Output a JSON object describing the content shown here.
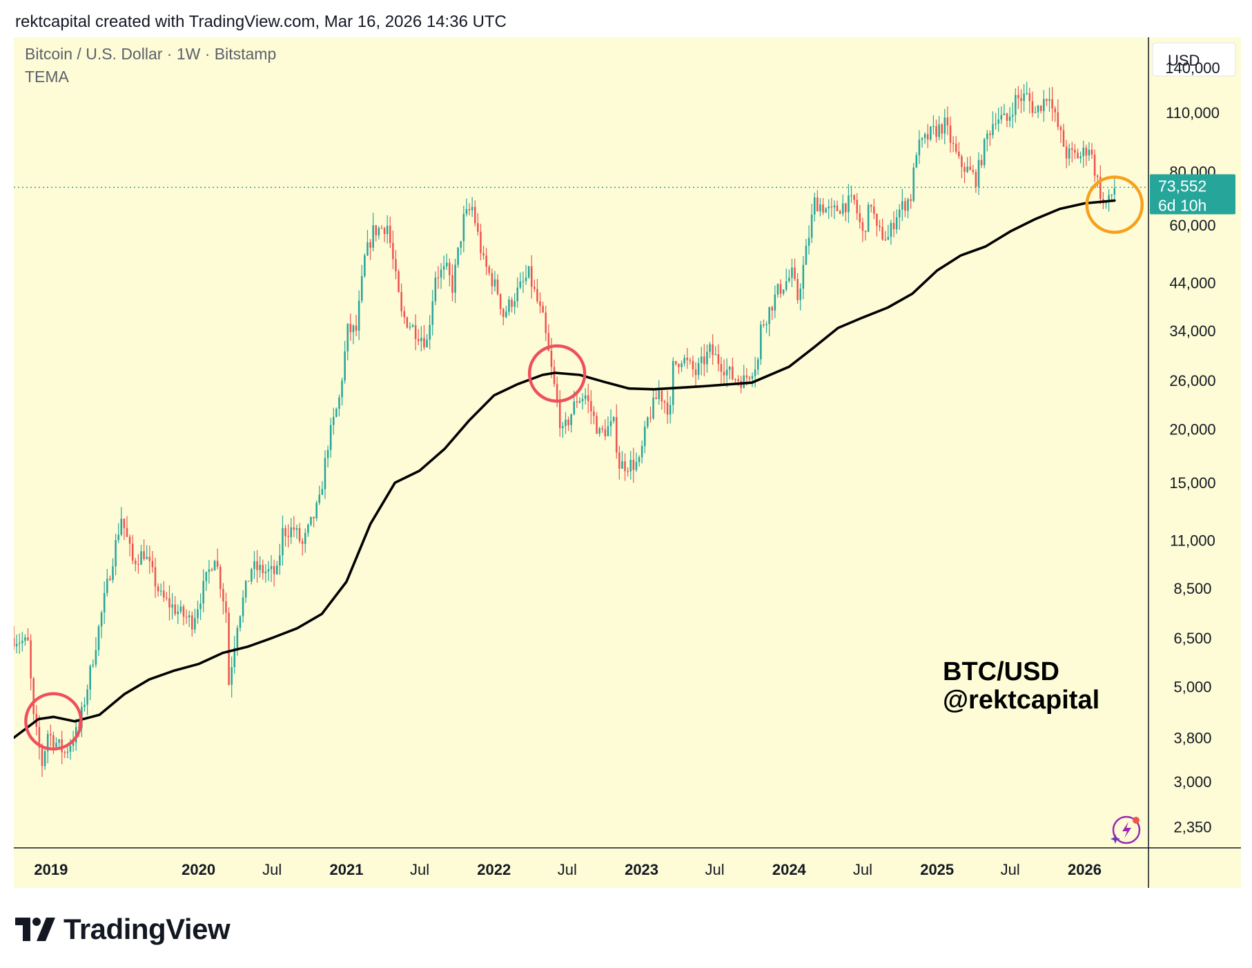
{
  "header": {
    "text": "rektcapital created with TradingView.com, Mar 16, 2026 14:36 UTC"
  },
  "legend": {
    "symbol": "Bitcoin / U.S. Dollar · 1W · Bitstamp",
    "indicator": "TEMA"
  },
  "watermark": {
    "line1": "BTC/USD",
    "line2": "@rektcapital"
  },
  "price_scale": {
    "currency": "USD",
    "last_price": "73,552",
    "countdown": "6d 10h"
  },
  "footer": {
    "brand": "TradingView"
  },
  "colors": {
    "background": "#fdfcd6",
    "up": "#26a69a",
    "down": "#ef5350",
    "tema": "#000000",
    "circle_red": "#ef4f5b",
    "circle_orange": "#f7a01b",
    "price_label": "#26a69a"
  },
  "chart_data": {
    "type": "candlestick",
    "y_scale": "log",
    "ylim": [
      2100,
      165000
    ],
    "xlim": [
      "2018-10-01",
      "2026-06-08"
    ],
    "y_ticks": [
      "140,000",
      "110,000",
      "80,000",
      "60,000",
      "44,000",
      "34,000",
      "26,000",
      "20,000",
      "15,000",
      "11,000",
      "8,500",
      "6,500",
      "5,000",
      "3,800",
      "3,000",
      "2,350"
    ],
    "y_tick_values": [
      140000,
      110000,
      80000,
      60000,
      44000,
      34000,
      26000,
      20000,
      15000,
      11000,
      8500,
      6500,
      5000,
      3800,
      3000,
      2350
    ],
    "x_ticks": [
      {
        "label": "2019",
        "date": "2019-01-01",
        "bold": true
      },
      {
        "label": "2020",
        "date": "2020-01-01",
        "bold": true
      },
      {
        "label": "Jul",
        "date": "2020-07-01",
        "bold": false
      },
      {
        "label": "2021",
        "date": "2021-01-01",
        "bold": true
      },
      {
        "label": "Jul",
        "date": "2021-07-01",
        "bold": false
      },
      {
        "label": "2022",
        "date": "2022-01-01",
        "bold": true
      },
      {
        "label": "Jul",
        "date": "2022-07-01",
        "bold": false
      },
      {
        "label": "2023",
        "date": "2023-01-01",
        "bold": true
      },
      {
        "label": "Jul",
        "date": "2023-07-01",
        "bold": false
      },
      {
        "label": "2024",
        "date": "2024-01-01",
        "bold": true
      },
      {
        "label": "Jul",
        "date": "2024-07-01",
        "bold": false
      },
      {
        "label": "2025",
        "date": "2025-01-01",
        "bold": true
      },
      {
        "label": "Jul",
        "date": "2025-07-01",
        "bold": false
      },
      {
        "label": "2026",
        "date": "2026-01-01",
        "bold": true
      }
    ],
    "series": [
      {
        "name": "Bitcoin / U.S. Dollar",
        "kind": "price",
        "points": [
          [
            "2018-10-01",
            6500
          ],
          [
            "2018-11-05",
            6300
          ],
          [
            "2018-11-19",
            4200
          ],
          [
            "2018-12-10",
            3300
          ],
          [
            "2018-12-24",
            3900
          ],
          [
            "2019-02-04",
            3500
          ],
          [
            "2019-03-11",
            4000
          ],
          [
            "2019-04-01",
            5000
          ],
          [
            "2019-05-13",
            8000
          ],
          [
            "2019-06-24",
            12500
          ],
          [
            "2019-07-22",
            9800
          ],
          [
            "2019-08-19",
            10300
          ],
          [
            "2019-09-30",
            8100
          ],
          [
            "2019-11-18",
            7400
          ],
          [
            "2019-12-16",
            7100
          ],
          [
            "2020-02-10",
            10200
          ],
          [
            "2020-03-09",
            7500
          ],
          [
            "2020-03-16",
            5100
          ],
          [
            "2020-04-06",
            7100
          ],
          [
            "2020-05-11",
            9500
          ],
          [
            "2020-06-15",
            9300
          ],
          [
            "2020-07-13",
            9200
          ],
          [
            "2020-07-27",
            11500
          ],
          [
            "2020-08-24",
            11700
          ],
          [
            "2020-09-14",
            10700
          ],
          [
            "2020-10-26",
            13500
          ],
          [
            "2020-11-16",
            18500
          ],
          [
            "2020-12-14",
            23500
          ],
          [
            "2021-01-04",
            34000
          ],
          [
            "2021-01-25",
            34000
          ],
          [
            "2021-02-15",
            50000
          ],
          [
            "2021-03-08",
            58000
          ],
          [
            "2021-04-12",
            60000
          ],
          [
            "2021-05-17",
            37000
          ],
          [
            "2021-06-21",
            34000
          ],
          [
            "2021-07-19",
            32000
          ],
          [
            "2021-08-09",
            46000
          ],
          [
            "2021-09-06",
            47000
          ],
          [
            "2021-09-20",
            43000
          ],
          [
            "2021-10-18",
            62000
          ],
          [
            "2021-11-08",
            66000
          ],
          [
            "2021-12-06",
            49000
          ],
          [
            "2022-01-10",
            42000
          ],
          [
            "2022-01-24",
            37000
          ],
          [
            "2022-02-14",
            40000
          ],
          [
            "2022-03-28",
            46000
          ],
          [
            "2022-05-02",
            36000
          ],
          [
            "2022-05-16",
            30000
          ],
          [
            "2022-06-13",
            21000
          ],
          [
            "2022-06-20",
            19500
          ],
          [
            "2022-07-25",
            23500
          ],
          [
            "2022-08-15",
            24000
          ],
          [
            "2022-09-19",
            19500
          ],
          [
            "2022-10-24",
            20500
          ],
          [
            "2022-11-07",
            16500
          ],
          [
            "2022-12-26",
            16600
          ],
          [
            "2023-01-16",
            21000
          ],
          [
            "2023-02-13",
            24500
          ],
          [
            "2023-03-13",
            22000
          ],
          [
            "2023-03-20",
            28000
          ],
          [
            "2023-04-10",
            29500
          ],
          [
            "2023-05-15",
            27000
          ],
          [
            "2023-06-19",
            30500
          ],
          [
            "2023-08-14",
            26500
          ],
          [
            "2023-09-11",
            26000
          ],
          [
            "2023-10-16",
            29000
          ],
          [
            "2023-10-23",
            34500
          ],
          [
            "2023-12-04",
            42000
          ],
          [
            "2024-01-08",
            46000
          ],
          [
            "2024-01-22",
            40500
          ],
          [
            "2024-02-12",
            52000
          ],
          [
            "2024-03-04",
            68000
          ],
          [
            "2024-03-18",
            67000
          ],
          [
            "2024-04-15",
            64000
          ],
          [
            "2024-05-13",
            67000
          ],
          [
            "2024-06-10",
            68000
          ],
          [
            "2024-07-01",
            57000
          ],
          [
            "2024-07-22",
            68000
          ],
          [
            "2024-08-05",
            58000
          ],
          [
            "2024-09-02",
            56000
          ],
          [
            "2024-09-23",
            64000
          ],
          [
            "2024-10-28",
            70000
          ],
          [
            "2024-11-11",
            90000
          ],
          [
            "2024-12-16",
            98000
          ],
          [
            "2025-01-20",
            103000
          ],
          [
            "2025-02-24",
            84000
          ],
          [
            "2025-03-10",
            82000
          ],
          [
            "2025-04-07",
            77000
          ],
          [
            "2025-05-05",
            97000
          ],
          [
            "2025-05-26",
            108000
          ],
          [
            "2025-06-23",
            105000
          ],
          [
            "2025-07-14",
            118000
          ],
          [
            "2025-08-11",
            120000
          ],
          [
            "2025-09-01",
            110000
          ],
          [
            "2025-10-06",
            123000
          ],
          [
            "2025-10-13",
            112000
          ],
          [
            "2025-11-17",
            88000
          ],
          [
            "2025-12-22",
            87000
          ],
          [
            "2026-01-12",
            92000
          ],
          [
            "2026-02-02",
            76000
          ],
          [
            "2026-02-16",
            67000
          ],
          [
            "2026-03-02",
            68000
          ],
          [
            "2026-03-16",
            73552
          ]
        ]
      },
      {
        "name": "TEMA",
        "kind": "indicator",
        "points": [
          [
            "2018-10-01",
            3800
          ],
          [
            "2018-12-01",
            4200
          ],
          [
            "2019-01-07",
            4250
          ],
          [
            "2019-03-01",
            4150
          ],
          [
            "2019-05-01",
            4300
          ],
          [
            "2019-07-01",
            4800
          ],
          [
            "2019-09-01",
            5200
          ],
          [
            "2019-11-01",
            5450
          ],
          [
            "2020-01-01",
            5650
          ],
          [
            "2020-03-01",
            6000
          ],
          [
            "2020-05-01",
            6200
          ],
          [
            "2020-07-01",
            6500
          ],
          [
            "2020-09-01",
            6850
          ],
          [
            "2020-11-01",
            7400
          ],
          [
            "2021-01-01",
            8800
          ],
          [
            "2021-03-01",
            12000
          ],
          [
            "2021-05-01",
            15000
          ],
          [
            "2021-07-01",
            16000
          ],
          [
            "2021-09-01",
            18000
          ],
          [
            "2021-11-01",
            21000
          ],
          [
            "2022-01-01",
            24000
          ],
          [
            "2022-03-01",
            25500
          ],
          [
            "2022-05-01",
            26800
          ],
          [
            "2022-06-01",
            27100
          ],
          [
            "2022-08-01",
            26800
          ],
          [
            "2022-10-01",
            25800
          ],
          [
            "2022-12-01",
            24900
          ],
          [
            "2023-02-01",
            24800
          ],
          [
            "2023-06-01",
            25200
          ],
          [
            "2023-10-01",
            25700
          ],
          [
            "2024-01-01",
            28000
          ],
          [
            "2024-03-01",
            31000
          ],
          [
            "2024-05-01",
            34500
          ],
          [
            "2024-07-01",
            36500
          ],
          [
            "2024-09-01",
            38500
          ],
          [
            "2024-11-01",
            41500
          ],
          [
            "2025-01-01",
            47000
          ],
          [
            "2025-03-01",
            51000
          ],
          [
            "2025-05-01",
            53500
          ],
          [
            "2025-07-01",
            58000
          ],
          [
            "2025-09-01",
            62000
          ],
          [
            "2025-11-01",
            65500
          ],
          [
            "2026-01-01",
            67500
          ],
          [
            "2026-03-16",
            68500
          ]
        ]
      }
    ],
    "annotations": [
      {
        "type": "circle",
        "color": "red",
        "date": "2019-01-07",
        "price": 4150
      },
      {
        "type": "circle",
        "color": "red",
        "date": "2022-06-06",
        "price": 27000
      },
      {
        "type": "circle",
        "color": "orange",
        "date": "2026-03-16",
        "price": 67000
      }
    ],
    "last_price": 73552
  }
}
